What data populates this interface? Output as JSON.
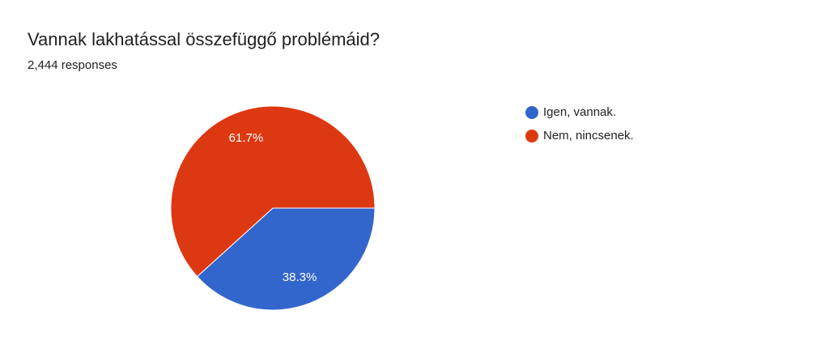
{
  "chart_data": {
    "type": "pie",
    "title": "Vannak lakhatással összefüggő problémáid?",
    "subtitle": "2,444 responses",
    "categories": [
      "Igen, vannak.",
      "Nem, nincsenek."
    ],
    "values": [
      38.3,
      61.7
    ],
    "value_labels": [
      "38.3%",
      "61.7%"
    ],
    "colors": [
      "#3366cc",
      "#dc3912"
    ],
    "legend": "right"
  }
}
